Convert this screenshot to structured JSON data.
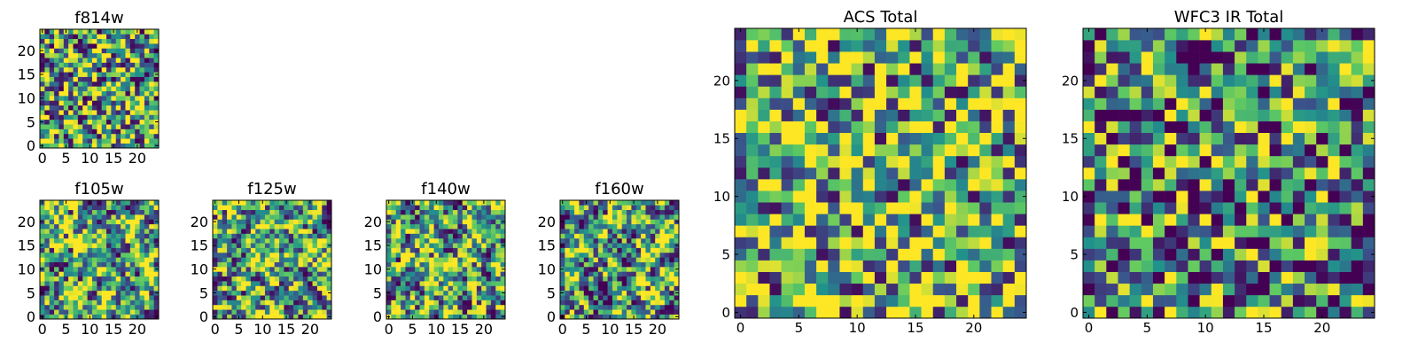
{
  "colormap": {
    "name": "viridis",
    "stops": [
      "#440154",
      "#3b528b",
      "#21918c",
      "#5ec962",
      "#fde725"
    ]
  },
  "chart_data": [
    {
      "type": "heatmap",
      "title": "f814w",
      "grid_size": 25,
      "xticks": [
        0,
        5,
        10,
        15,
        20
      ],
      "yticks": [
        0,
        5,
        10,
        15,
        20
      ],
      "texture": "noisy",
      "seed": 11,
      "bias": 0.62,
      "values": "per-pixel noise image (25x25), values not individually readable"
    },
    {
      "type": "heatmap",
      "title": "ACS Total",
      "grid_size": 25,
      "xticks": [
        0,
        5,
        10,
        15,
        20
      ],
      "yticks": [
        0,
        5,
        10,
        15,
        20
      ],
      "texture": "noisy",
      "seed": 23,
      "bias": 0.68,
      "values": "per-pixel noise image (25x25), values not individually readable"
    },
    {
      "type": "heatmap",
      "title": "WFC3 IR Total",
      "grid_size": 25,
      "xticks": [
        0,
        5,
        10,
        15,
        20
      ],
      "yticks": [
        0,
        5,
        10,
        15,
        20
      ],
      "texture": "noisy",
      "seed": 37,
      "bias": 0.45,
      "values": "per-pixel noise image (25x25), values not individually readable"
    },
    {
      "type": "heatmap",
      "title": "f105w",
      "grid_size": 25,
      "xticks": [
        0,
        5,
        10,
        15,
        20
      ],
      "yticks": [
        0,
        5,
        10,
        15,
        20
      ],
      "texture": "smooth",
      "seed": 41,
      "bias": 0.6,
      "values": "smoothed noise image (25x25), values not individually readable"
    },
    {
      "type": "heatmap",
      "title": "f125w",
      "grid_size": 25,
      "xticks": [
        0,
        5,
        10,
        15,
        20
      ],
      "yticks": [
        0,
        5,
        10,
        15,
        20
      ],
      "texture": "smooth",
      "seed": 53,
      "bias": 0.62,
      "values": "smoothed noise image (25x25), values not individually readable"
    },
    {
      "type": "heatmap",
      "title": "f140w",
      "grid_size": 25,
      "xticks": [
        0,
        5,
        10,
        15,
        20
      ],
      "yticks": [
        0,
        5,
        10,
        15,
        20
      ],
      "texture": "smooth",
      "seed": 67,
      "bias": 0.6,
      "values": "smoothed noise image (25x25), values not individually readable"
    },
    {
      "type": "heatmap",
      "title": "f160w",
      "grid_size": 25,
      "xticks": [
        0,
        5,
        10,
        15,
        20
      ],
      "yticks": [
        0,
        5,
        10,
        15,
        20
      ],
      "texture": "smooth",
      "seed": 79,
      "bias": 0.55,
      "values": "smoothed noise image (25x25), values not individually readable"
    }
  ]
}
